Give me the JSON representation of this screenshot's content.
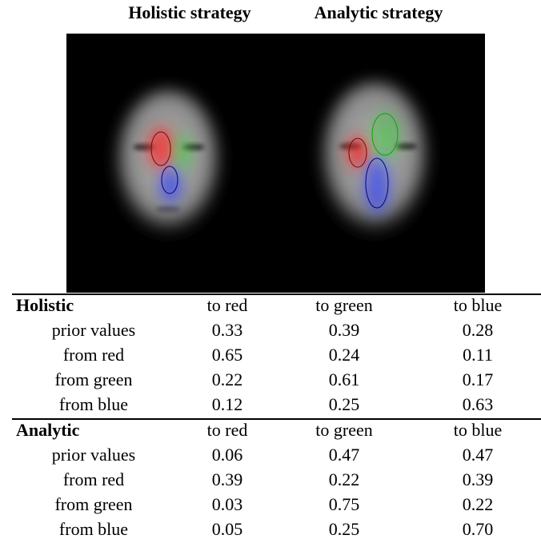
{
  "figure": {
    "titles": [
      "Holistic strategy",
      "Analytic strategy"
    ]
  },
  "table": {
    "sections": [
      {
        "title": "Holistic",
        "columns": [
          "to red",
          "to green",
          "to blue"
        ],
        "rows": [
          [
            "prior values",
            "0.33",
            "0.39",
            "0.28"
          ],
          [
            "from red",
            "0.65",
            "0.24",
            "0.11"
          ],
          [
            "from green",
            "0.22",
            "0.61",
            "0.17"
          ],
          [
            "from blue",
            "0.12",
            "0.25",
            "0.63"
          ]
        ]
      },
      {
        "title": "Analytic",
        "columns": [
          "to red",
          "to green",
          "to blue"
        ],
        "rows": [
          [
            "prior values",
            "0.06",
            "0.47",
            "0.47"
          ],
          [
            "from red",
            "0.39",
            "0.22",
            "0.39"
          ],
          [
            "from green",
            "0.03",
            "0.75",
            "0.22"
          ],
          [
            "from blue",
            "0.05",
            "0.25",
            "0.70"
          ]
        ]
      }
    ]
  }
}
